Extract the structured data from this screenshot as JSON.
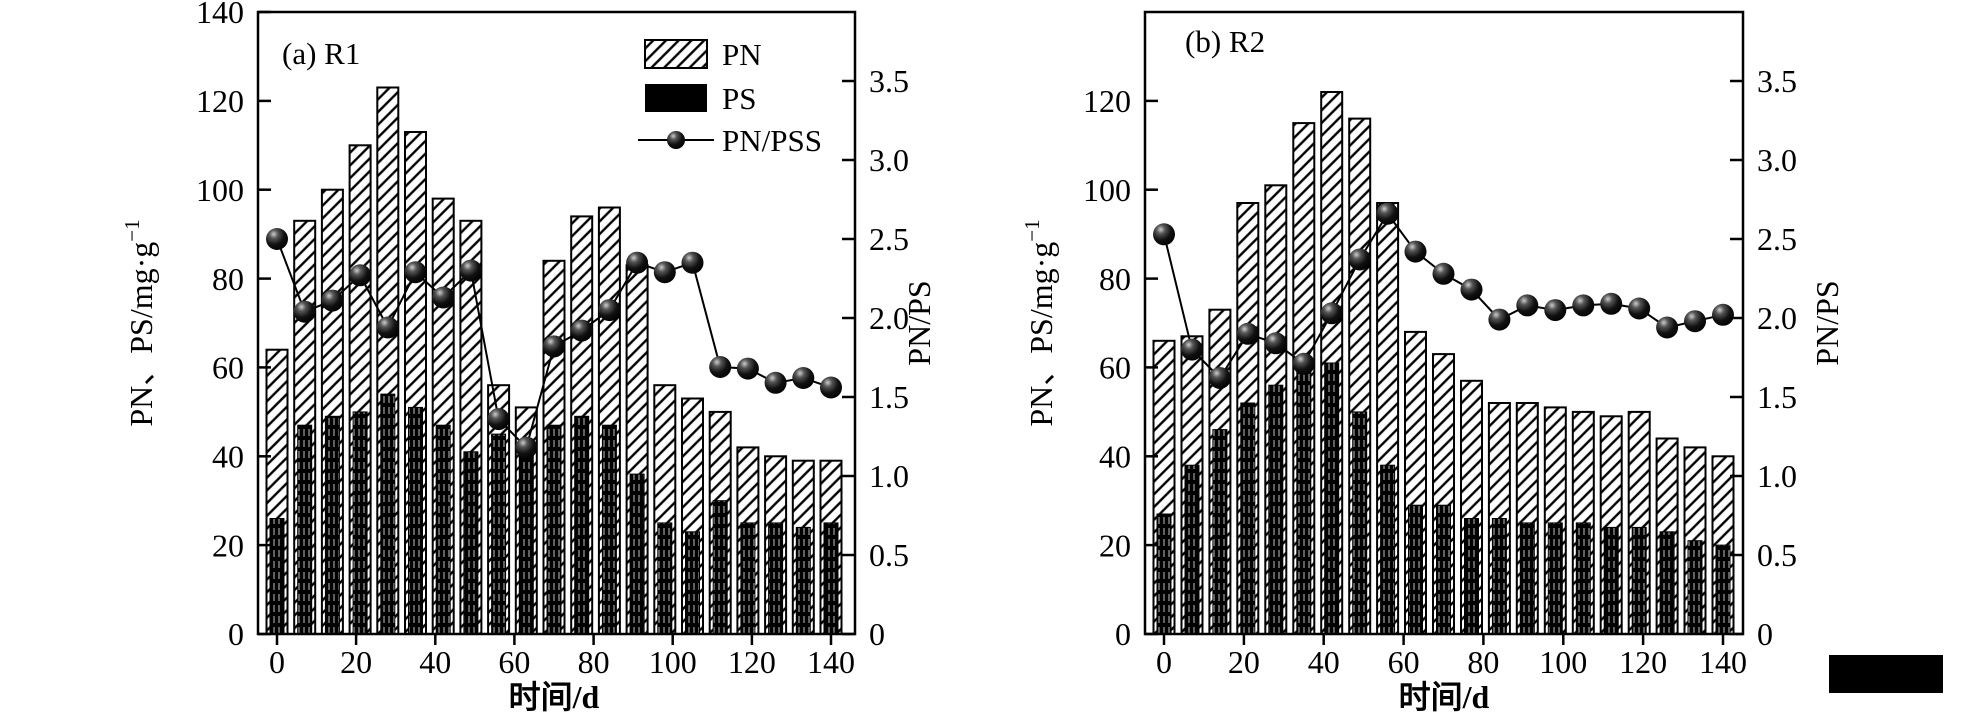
{
  "colors": {
    "ink": "#000000",
    "paper": "#ffffff"
  },
  "chart_data": [
    {
      "type": "bar",
      "panel_label": "(a) R1",
      "xlabel": "时间/d",
      "ylabel": {
        "base": "PN、PS/mg·g",
        "sup": "−1"
      },
      "y2label": "PN/PS",
      "x": [
        0,
        7,
        14,
        21,
        28,
        35,
        42,
        49,
        56,
        63,
        70,
        77,
        84,
        91,
        98,
        105,
        112,
        119,
        126,
        133,
        140
      ],
      "series": [
        {
          "name": "PN",
          "kind": "bar",
          "style": "hatched",
          "axis": "left",
          "values": [
            64,
            93,
            100,
            110,
            123,
            113,
            98,
            93,
            56,
            51,
            84,
            94,
            96,
            83,
            56,
            53,
            50,
            42,
            40,
            39,
            39
          ]
        },
        {
          "name": "PS",
          "kind": "bar",
          "style": "solid",
          "axis": "left",
          "values": [
            26,
            47,
            49,
            50,
            54,
            51,
            47,
            41,
            45,
            42,
            47,
            49,
            47,
            36,
            25,
            23,
            30,
            25,
            25,
            24,
            25
          ]
        },
        {
          "name": "PN/PSS",
          "kind": "line-marker",
          "style": "sphere",
          "axis": "right",
          "values": [
            2.5,
            2.04,
            2.11,
            2.27,
            1.94,
            2.29,
            2.13,
            2.3,
            1.36,
            1.18,
            1.82,
            1.92,
            2.05,
            2.35,
            2.29,
            2.35,
            1.69,
            1.68,
            1.59,
            1.62,
            1.56
          ]
        }
      ],
      "ylim": [
        0,
        140
      ],
      "y2lim": [
        0,
        4
      ],
      "ytick_labels": [
        "0",
        "20",
        "40",
        "60",
        "80",
        "100",
        "120",
        "140"
      ],
      "y2tick_labels": [
        "0",
        "0.5",
        "1.0",
        "1.5",
        "2.0",
        "2.5",
        "3.0",
        "3.5"
      ],
      "xtick_labels": [
        "0",
        "20",
        "40",
        "60",
        "80",
        "100",
        "120",
        "140"
      ],
      "grid": "off",
      "legend": {
        "position": "upper-right-inside",
        "entries": [
          "PN",
          "PS",
          "PN/PSS"
        ]
      }
    },
    {
      "type": "bar",
      "panel_label": "(b) R2",
      "xlabel": "时间/d",
      "ylabel": {
        "base": "PN、PS/mg·g",
        "sup": "−1"
      },
      "y2label": "PN/PS",
      "x": [
        0,
        7,
        14,
        21,
        28,
        35,
        42,
        49,
        56,
        63,
        70,
        77,
        84,
        91,
        98,
        105,
        112,
        119,
        126,
        133,
        140
      ],
      "series": [
        {
          "name": "PN",
          "kind": "bar",
          "style": "hatched",
          "axis": "left",
          "values": [
            66,
            67,
            73,
            97,
            101,
            115,
            122,
            116,
            97,
            68,
            63,
            57,
            52,
            52,
            51,
            50,
            49,
            50,
            44,
            42,
            40
          ]
        },
        {
          "name": "PS",
          "kind": "bar",
          "style": "solid",
          "axis": "left",
          "values": [
            27,
            38,
            46,
            52,
            56,
            61,
            61,
            50,
            38,
            29,
            29,
            26,
            26,
            25,
            25,
            25,
            24,
            24,
            23,
            21,
            20
          ]
        },
        {
          "name": "PN/PSS",
          "kind": "line-marker",
          "style": "sphere",
          "axis": "right",
          "values": [
            2.53,
            1.8,
            1.62,
            1.9,
            1.84,
            1.71,
            2.03,
            2.37,
            2.66,
            2.42,
            2.28,
            2.18,
            1.99,
            2.08,
            2.05,
            2.08,
            2.09,
            2.06,
            1.94,
            1.98,
            2.02
          ]
        }
      ],
      "ylim": [
        0,
        140
      ],
      "y2lim": [
        0,
        4
      ],
      "ytick_labels": [
        "0",
        "20",
        "40",
        "60",
        "80",
        "100",
        "120"
      ],
      "y2tick_labels": [
        "0",
        "0.5",
        "1.0",
        "1.5",
        "2.0",
        "2.5",
        "3.0",
        "3.5"
      ],
      "xtick_labels": [
        "0",
        "20",
        "40",
        "60",
        "80",
        "100",
        "120",
        "140"
      ],
      "grid": "off",
      "legend": null
    }
  ]
}
